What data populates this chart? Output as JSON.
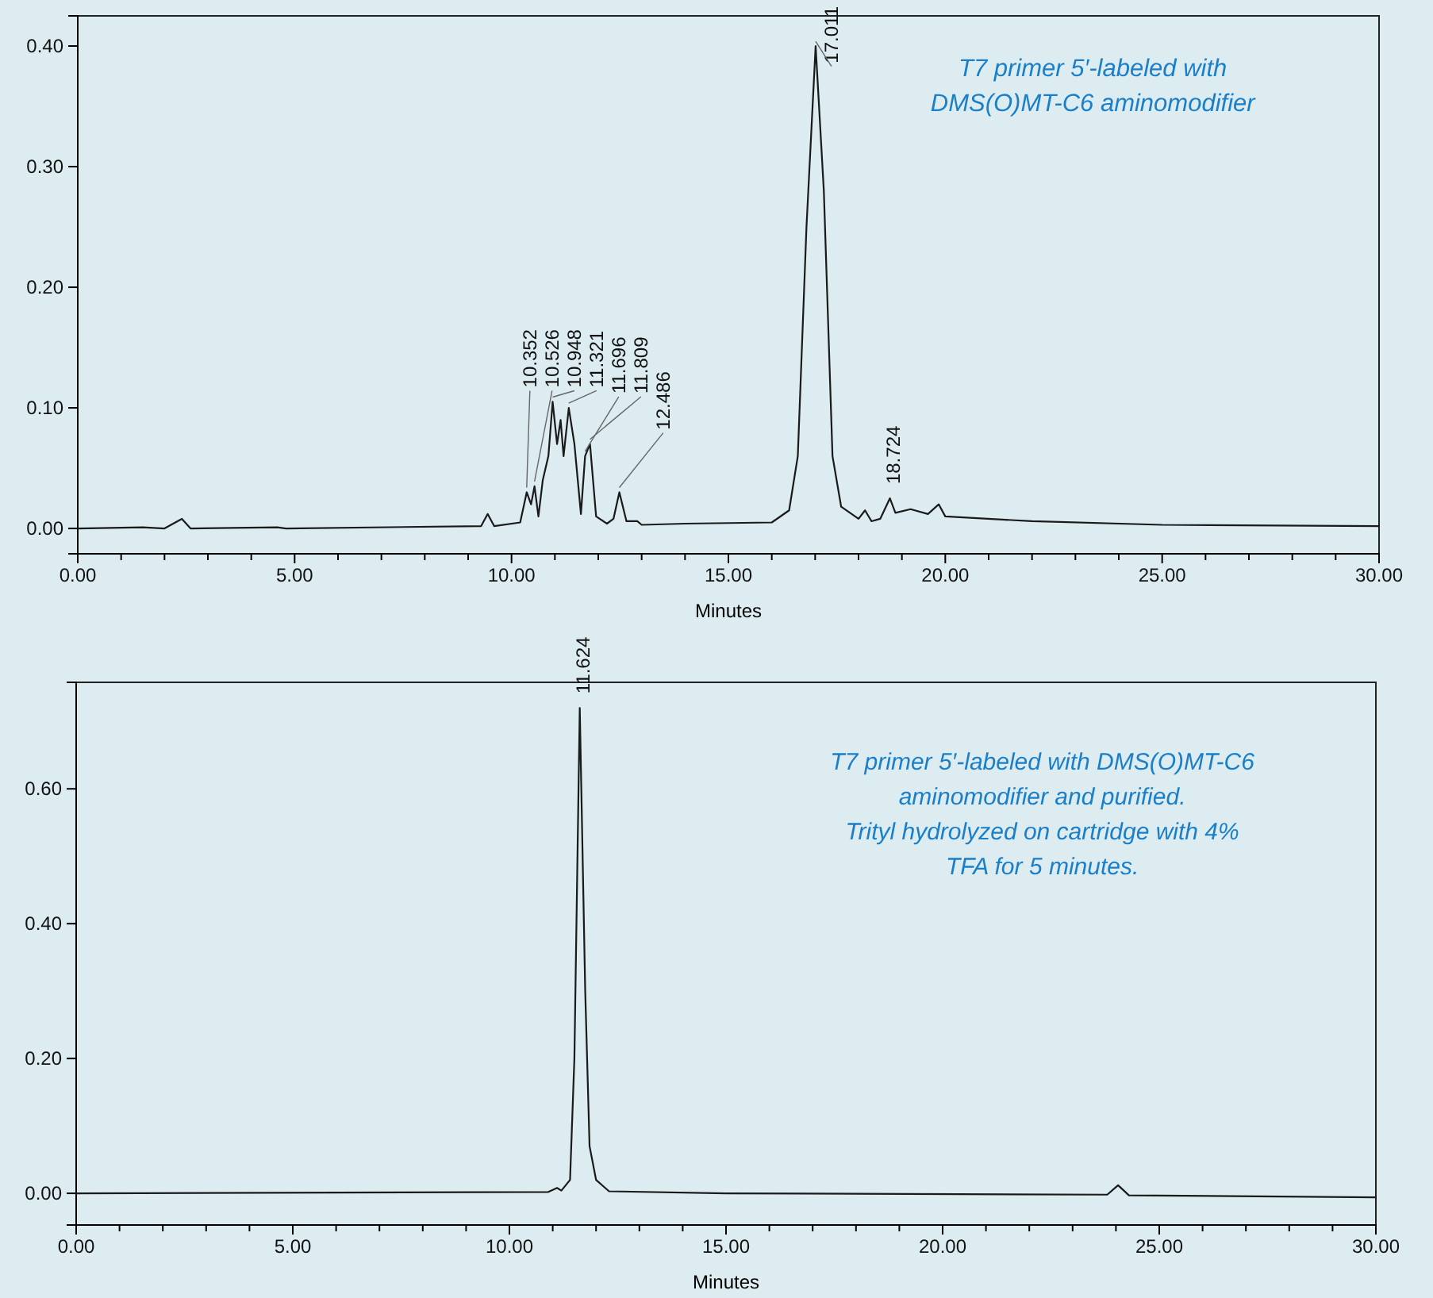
{
  "chart_data": [
    {
      "type": "line",
      "xlabel": "Minutes",
      "xlim": [
        0,
        30
      ],
      "ylim": [
        -0.021,
        0.425
      ],
      "grid": false,
      "marker": "none",
      "line_style": "solid",
      "xticks": [
        {
          "value": 0,
          "label": "0.00"
        },
        {
          "value": 1,
          "label": null
        },
        {
          "value": 2,
          "label": null
        },
        {
          "value": 3,
          "label": null
        },
        {
          "value": 4,
          "label": null
        },
        {
          "value": 5,
          "label": "5.00"
        },
        {
          "value": 6,
          "label": null
        },
        {
          "value": 7,
          "label": null
        },
        {
          "value": 8,
          "label": null
        },
        {
          "value": 9,
          "label": null
        },
        {
          "value": 10,
          "label": "10.00"
        },
        {
          "value": 11,
          "label": null
        },
        {
          "value": 12,
          "label": null
        },
        {
          "value": 13,
          "label": null
        },
        {
          "value": 14,
          "label": null
        },
        {
          "value": 15,
          "label": "15.00"
        },
        {
          "value": 16,
          "label": null
        },
        {
          "value": 17,
          "label": null
        },
        {
          "value": 18,
          "label": null
        },
        {
          "value": 19,
          "label": null
        },
        {
          "value": 20,
          "label": "20.00"
        },
        {
          "value": 21,
          "label": null
        },
        {
          "value": 22,
          "label": null
        },
        {
          "value": 23,
          "label": null
        },
        {
          "value": 24,
          "label": null
        },
        {
          "value": 25,
          "label": "25.00"
        },
        {
          "value": 26,
          "label": null
        },
        {
          "value": 27,
          "label": null
        },
        {
          "value": 28,
          "label": null
        },
        {
          "value": 29,
          "label": null
        },
        {
          "value": 30,
          "label": "30.00"
        }
      ],
      "yticks": [
        {
          "value": 0,
          "label": "0.00"
        },
        {
          "value": 0.1,
          "label": "0.10"
        },
        {
          "value": 0.2,
          "label": "0.20"
        },
        {
          "value": 0.3,
          "label": "0.30"
        },
        {
          "value": 0.4,
          "label": "0.40"
        }
      ],
      "series": [
        {
          "color": "#1a1a1a",
          "x": [
            0,
            1.5,
            2.0,
            2.2,
            2.4,
            2.6,
            4.6,
            4.8,
            9.3,
            9.45,
            9.6,
            10.2,
            10.35,
            10.45,
            10.53,
            10.62,
            10.72,
            10.85,
            10.948,
            11.05,
            11.132,
            11.2,
            11.32,
            11.45,
            11.6,
            11.696,
            11.809,
            11.95,
            12.2,
            12.35,
            12.486,
            12.65,
            12.9,
            13.0,
            14,
            16.0,
            16.4,
            16.6,
            16.8,
            17.011,
            17.2,
            17.4,
            17.6,
            18.0,
            18.15,
            18.3,
            18.5,
            18.724,
            18.85,
            19.2,
            19.6,
            19.85,
            20.0,
            22,
            25,
            30
          ],
          "values": [
            0,
            0.001,
            0,
            0.004,
            0.008,
            0,
            0.001,
            0,
            0.002,
            0.012,
            0.002,
            0.005,
            0.03,
            0.02,
            0.035,
            0.01,
            0.04,
            0.06,
            0.105,
            0.07,
            0.09,
            0.06,
            0.1,
            0.07,
            0.012,
            0.06,
            0.07,
            0.01,
            0.004,
            0.008,
            0.03,
            0.006,
            0.006,
            0.003,
            0.004,
            0.005,
            0.015,
            0.06,
            0.25,
            0.4,
            0.28,
            0.06,
            0.018,
            0.008,
            0.015,
            0.006,
            0.008,
            0.025,
            0.013,
            0.016,
            0.012,
            0.02,
            0.01,
            0.006,
            0.003,
            0.002
          ]
        }
      ],
      "annotations": [
        "T7 primer 5′-labeled with\nDMS(O)MT-C6 aminomodifier",
        {
          "text": "10.352",
          "x": 10.35,
          "y": 0.03
        },
        {
          "text": "10.526",
          "x": 10.53,
          "y": 0.035
        },
        {
          "text": "10.948",
          "x": 10.948,
          "y": 0.105
        },
        {
          "text": "11.321",
          "x": 11.32,
          "y": 0.1
        },
        {
          "text": "11.696",
          "x": 11.696,
          "y": 0.06
        },
        {
          "text": "11.809",
          "x": 11.809,
          "y": 0.07
        },
        {
          "text": "12.486",
          "x": 12.486,
          "y": 0.03
        },
        {
          "text": "17.011",
          "x": 17.011,
          "y": 0.4
        },
        {
          "text": "18.724",
          "x": 18.724,
          "y": 0.025
        }
      ]
    },
    {
      "type": "line",
      "xlabel": "Minutes",
      "xlim": [
        0,
        30
      ],
      "ylim": [
        -0.047,
        0.758
      ],
      "grid": false,
      "marker": "none",
      "line_style": "solid",
      "xticks": [
        {
          "value": 0,
          "label": "0.00"
        },
        {
          "value": 1,
          "label": null
        },
        {
          "value": 2,
          "label": null
        },
        {
          "value": 3,
          "label": null
        },
        {
          "value": 4,
          "label": null
        },
        {
          "value": 5,
          "label": "5.00"
        },
        {
          "value": 6,
          "label": null
        },
        {
          "value": 7,
          "label": null
        },
        {
          "value": 8,
          "label": null
        },
        {
          "value": 9,
          "label": null
        },
        {
          "value": 10,
          "label": "10.00"
        },
        {
          "value": 11,
          "label": null
        },
        {
          "value": 12,
          "label": null
        },
        {
          "value": 13,
          "label": null
        },
        {
          "value": 14,
          "label": null
        },
        {
          "value": 15,
          "label": "15.00"
        },
        {
          "value": 16,
          "label": null
        },
        {
          "value": 17,
          "label": null
        },
        {
          "value": 18,
          "label": null
        },
        {
          "value": 19,
          "label": null
        },
        {
          "value": 20,
          "label": "20.00"
        },
        {
          "value": 21,
          "label": null
        },
        {
          "value": 22,
          "label": null
        },
        {
          "value": 23,
          "label": null
        },
        {
          "value": 24,
          "label": null
        },
        {
          "value": 25,
          "label": "25.00"
        },
        {
          "value": 26,
          "label": null
        },
        {
          "value": 27,
          "label": null
        },
        {
          "value": 28,
          "label": null
        },
        {
          "value": 29,
          "label": null
        },
        {
          "value": 30,
          "label": "30.00"
        }
      ],
      "yticks": [
        {
          "value": 0,
          "label": "0.00"
        },
        {
          "value": 0.2,
          "label": "0.20"
        },
        {
          "value": 0.4,
          "label": "0.40"
        },
        {
          "value": 0.6,
          "label": "0.60"
        }
      ],
      "series": [
        {
          "color": "#1a1a1a",
          "x": [
            0,
            10.9,
            11.1,
            11.2,
            11.4,
            11.5,
            11.624,
            11.75,
            11.85,
            12.0,
            12.3,
            15,
            23.8,
            24.05,
            24.3,
            30
          ],
          "values": [
            0,
            0.002,
            0.008,
            0.004,
            0.02,
            0.2,
            0.72,
            0.3,
            0.07,
            0.02,
            0.003,
            0,
            -0.002,
            0.012,
            -0.003,
            -0.006
          ]
        }
      ],
      "annotations": [
        "T7 primer 5′-labeled with DMS(O)MT-C6\naminomodifier and purified.\nTrityl hydrolyzed on cartridge with 4%\nTFA for 5 minutes.",
        {
          "text": "11.624",
          "x": 11.624,
          "y": 0.72
        }
      ]
    }
  ]
}
